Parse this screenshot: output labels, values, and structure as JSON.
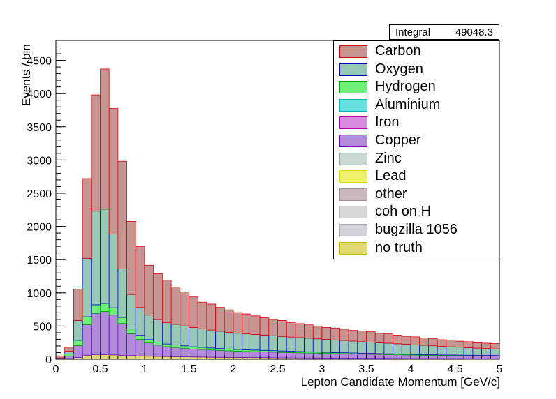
{
  "stats": {
    "label": "Integral",
    "value": "49048.3"
  },
  "legend": {
    "items": [
      {
        "label": "Carbon",
        "fill": "#c79494",
        "edge": "#e00000"
      },
      {
        "label": "Oxygen",
        "fill": "#97c7b5",
        "edge": "#0000cc"
      },
      {
        "label": "Hydrogen",
        "fill": "#6ef07a",
        "edge": "#00aa00"
      },
      {
        "label": "Aluminium",
        "fill": "#66e0e0",
        "edge": "#00b0b0"
      },
      {
        "label": "Iron",
        "fill": "#d88ce0",
        "edge": "#b000b0"
      },
      {
        "label": "Copper",
        "fill": "#b08cd8",
        "edge": "#6a00c0"
      },
      {
        "label": "Zinc",
        "fill": "#c8d8d0",
        "edge": "#90a8a0"
      },
      {
        "label": "Lead",
        "fill": "#f0f070",
        "edge": "#d8d800"
      },
      {
        "label": "other",
        "fill": "#c8b8bc",
        "edge": "#a09094"
      },
      {
        "label": "coh on H",
        "fill": "#d8d8d8",
        "edge": "#b0b0b0"
      },
      {
        "label": "bugzilla 1056",
        "fill": "#d0d0d8",
        "edge": "#a8a8b8"
      },
      {
        "label": "no truth",
        "fill": "#e0d870",
        "edge": "#c8b800"
      }
    ]
  },
  "chart_data": {
    "type": "bar",
    "stacked": true,
    "xlabel": "Lepton Candidate Momentum [GeV/c]",
    "ylabel": "Events / bin",
    "xlim": [
      0,
      5
    ],
    "ylim": [
      0,
      4800
    ],
    "bin_width": 0.1,
    "x": [
      0.05,
      0.15,
      0.25,
      0.35,
      0.45,
      0.55,
      0.65,
      0.75,
      0.85,
      0.95,
      1.05,
      1.15,
      1.25,
      1.35,
      1.45,
      1.55,
      1.65,
      1.75,
      1.85,
      1.95,
      2.05,
      2.15,
      2.25,
      2.35,
      2.45,
      2.55,
      2.65,
      2.75,
      2.85,
      2.95,
      3.05,
      3.15,
      3.25,
      3.35,
      3.45,
      3.55,
      3.65,
      3.75,
      3.85,
      3.95,
      4.05,
      4.15,
      4.25,
      4.35,
      4.45,
      4.55,
      4.65,
      4.75,
      4.85,
      4.95
    ],
    "xticks": [
      "0",
      "0.5",
      "1",
      "1.5",
      "2",
      "2.5",
      "3",
      "3.5",
      "4",
      "4.5",
      "5"
    ],
    "yticks": [
      "0",
      "500",
      "1000",
      "1500",
      "2000",
      "2500",
      "3000",
      "3500",
      "4000",
      "4500"
    ],
    "series": [
      {
        "name": "no truth",
        "color": "#e0d870",
        "values": [
          5,
          10,
          25,
          60,
          70,
          70,
          65,
          60,
          55,
          50,
          45,
          42,
          40,
          38,
          36,
          34,
          32,
          30,
          28,
          27,
          26,
          25,
          24,
          23,
          22,
          21,
          20,
          19,
          18,
          17,
          16,
          15,
          15,
          14,
          13,
          13,
          12,
          12,
          11,
          11,
          10,
          10,
          10,
          9,
          9,
          9,
          8,
          8,
          8,
          8
        ]
      },
      {
        "name": "Copper",
        "color": "#b08cd8",
        "values": [
          5,
          40,
          180,
          460,
          620,
          650,
          600,
          480,
          330,
          250,
          200,
          170,
          150,
          140,
          130,
          120,
          115,
          110,
          105,
          100,
          95,
          92,
          90,
          88,
          85,
          82,
          80,
          78,
          76,
          74,
          72,
          70,
          68,
          66,
          64,
          62,
          60,
          58,
          56,
          54,
          52,
          50,
          48,
          46,
          45,
          44,
          43,
          42,
          41,
          40
        ]
      },
      {
        "name": "Hydrogen",
        "color": "#6ef07a",
        "values": [
          0,
          30,
          80,
          120,
          130,
          120,
          110,
          90,
          70,
          60,
          50,
          45,
          40,
          38,
          36,
          34,
          32,
          30,
          28,
          27,
          26,
          25,
          24,
          23,
          22,
          21,
          20,
          19,
          18,
          17,
          16,
          15,
          15,
          14,
          13,
          13,
          12,
          12,
          11,
          11,
          10,
          10,
          10,
          9,
          9,
          9,
          8,
          8,
          8,
          8
        ]
      },
      {
        "name": "Oxygen",
        "color": "#97c7b5",
        "values": [
          10,
          40,
          300,
          880,
          1410,
          1420,
          1110,
          730,
          520,
          420,
          370,
          340,
          320,
          310,
          300,
          290,
          280,
          270,
          260,
          250,
          245,
          240,
          235,
          230,
          225,
          220,
          215,
          210,
          205,
          200,
          195,
          190,
          185,
          180,
          175,
          170,
          165,
          160,
          155,
          150,
          145,
          140,
          135,
          130,
          125,
          120,
          115,
          110,
          105,
          100
        ]
      },
      {
        "name": "Carbon",
        "color": "#c79494",
        "values": [
          30,
          60,
          470,
          1200,
          1750,
          2110,
          1890,
          1620,
          1100,
          920,
          750,
          690,
          640,
          560,
          510,
          460,
          400,
          390,
          360,
          340,
          310,
          300,
          280,
          260,
          245,
          240,
          220,
          210,
          200,
          190,
          180,
          180,
          170,
          160,
          160,
          160,
          140,
          140,
          130,
          120,
          120,
          110,
          110,
          100,
          100,
          90,
          90,
          80,
          80,
          80
        ]
      }
    ]
  }
}
